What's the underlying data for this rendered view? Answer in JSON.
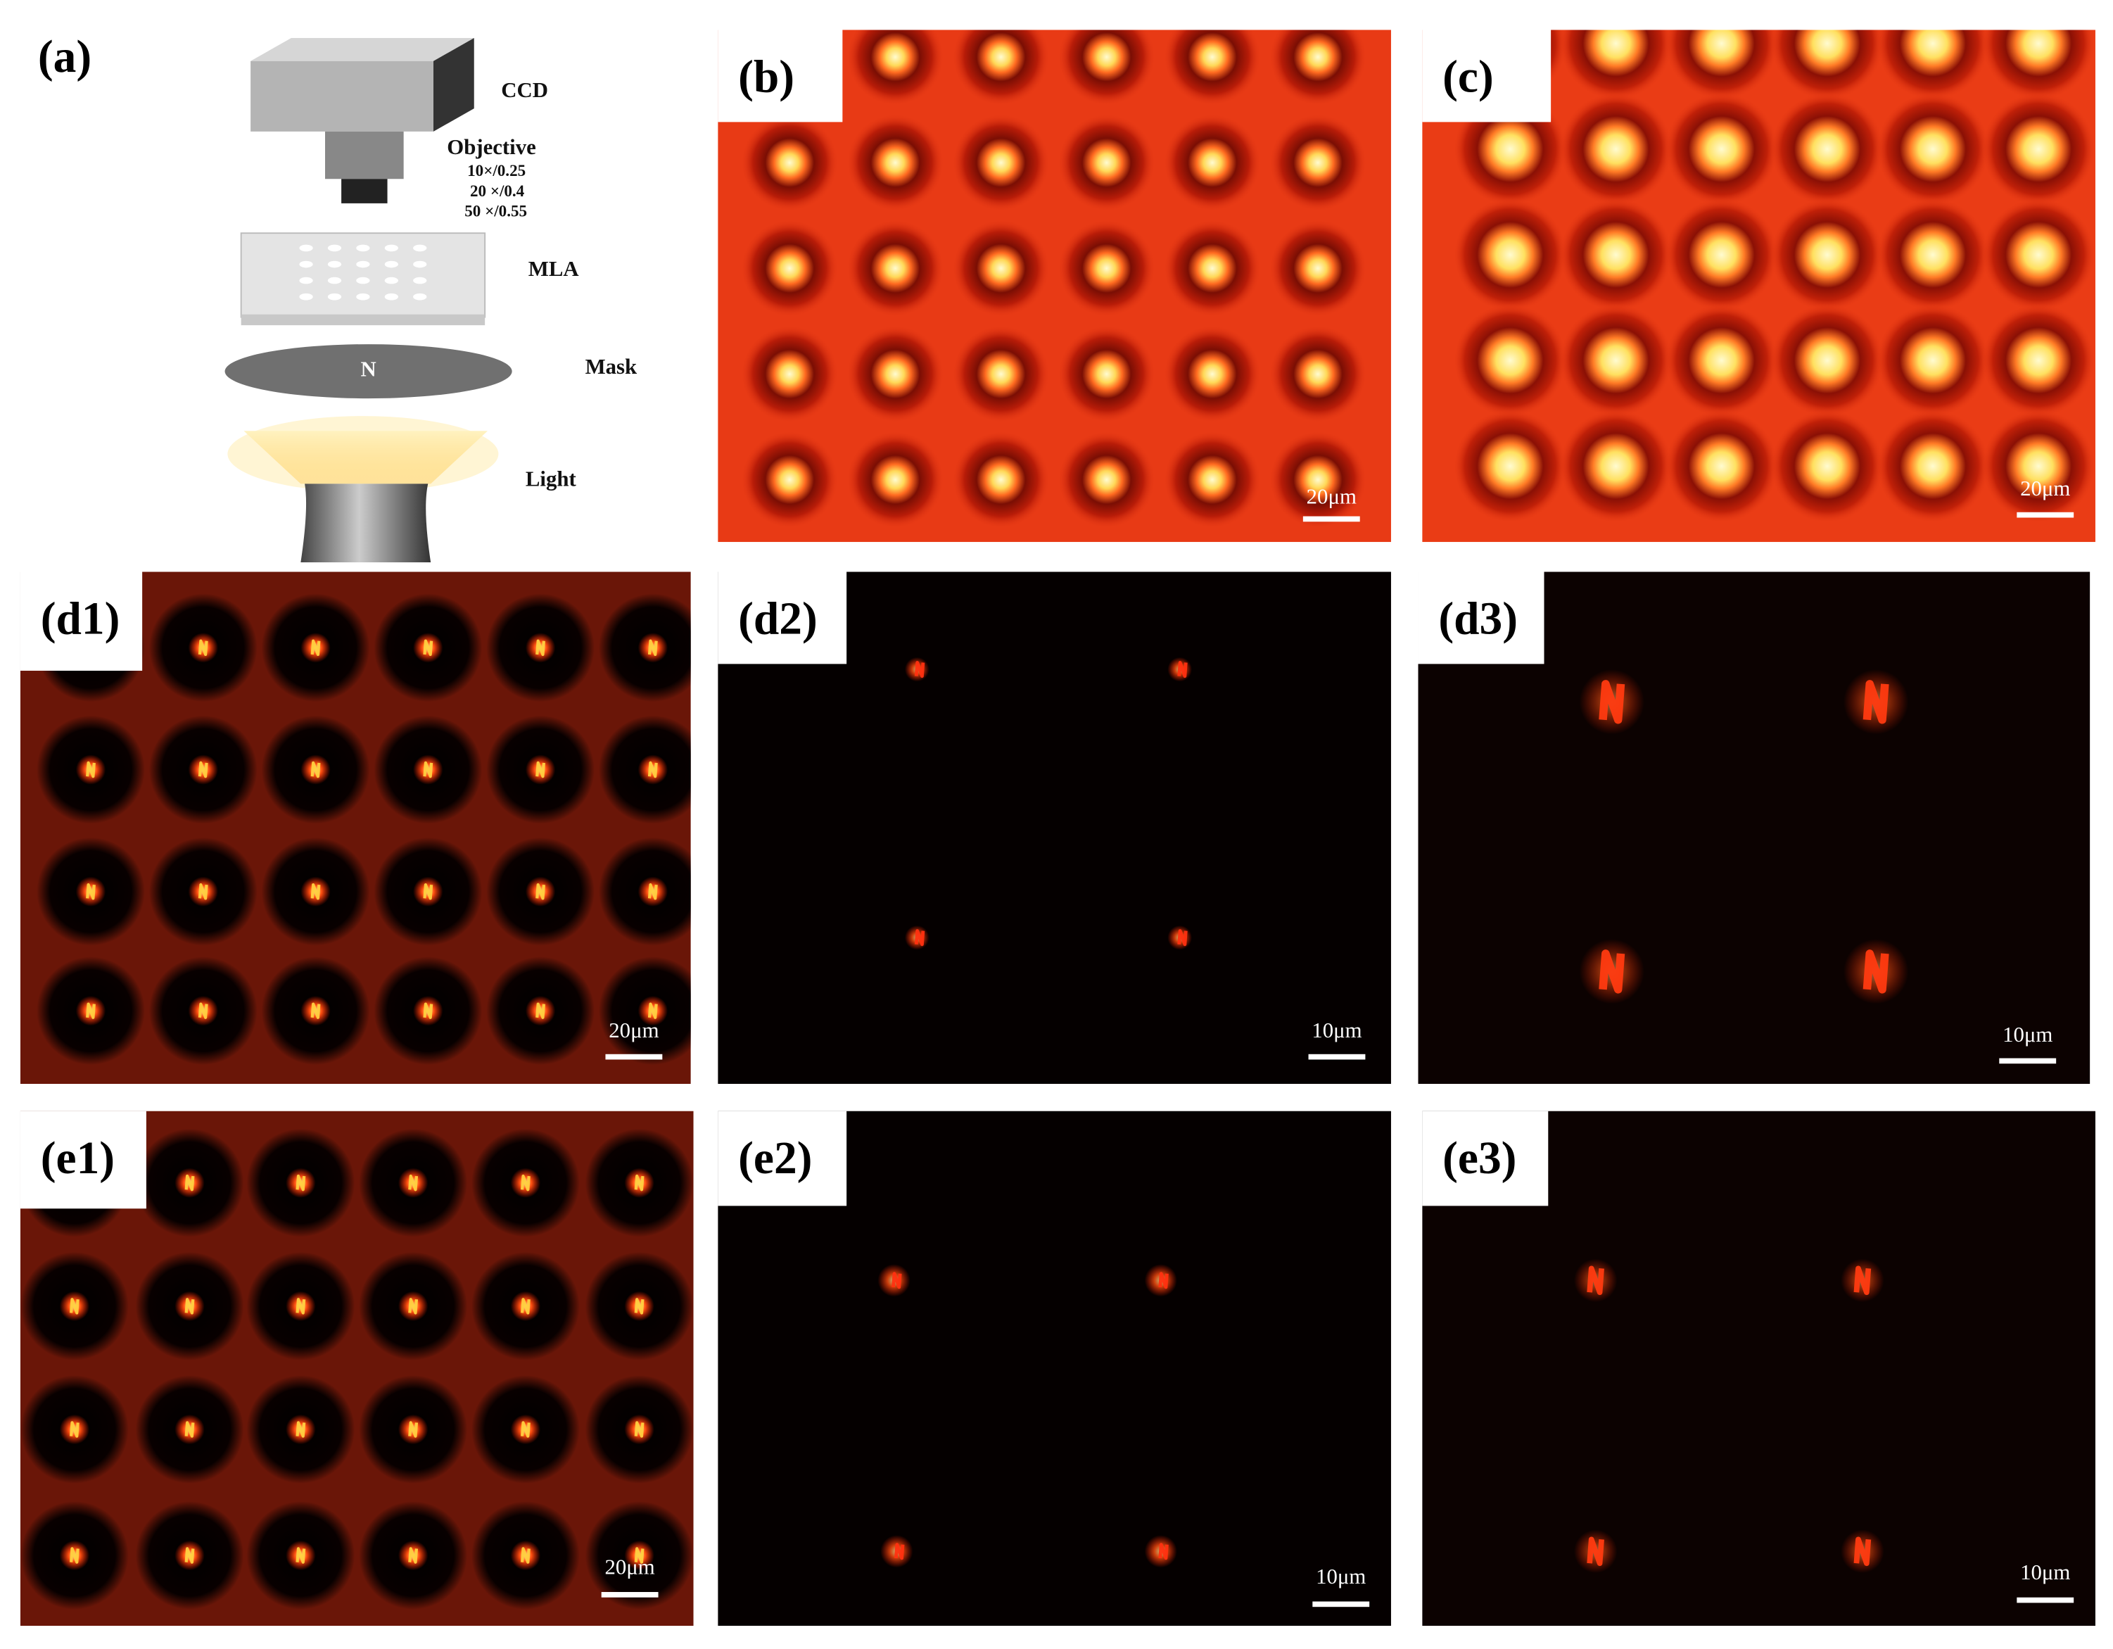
{
  "diagram": {
    "panel_label": "(a)",
    "ccd": "CCD",
    "objective": "Objective",
    "magnifications": [
      "10×/0.25",
      "20 ×/0.4",
      "50 ×/0.55"
    ],
    "mla": "MLA",
    "mask": "Mask",
    "mask_letter": "N",
    "light": "Light"
  },
  "panels": [
    {
      "label": "(b)",
      "scale_bar": "20μm"
    },
    {
      "label": "(c)",
      "scale_bar": "20μm"
    },
    {
      "label": "(d1)",
      "scale_bar": "20μm"
    },
    {
      "label": "(d2)",
      "scale_bar": "10μm"
    },
    {
      "label": "(d3)",
      "scale_bar": "10μm"
    },
    {
      "label": "(e1)",
      "scale_bar": "20μm"
    },
    {
      "label": "(e2)",
      "scale_bar": "10μm"
    },
    {
      "label": "(e3)",
      "scale_bar": "10μm"
    }
  ]
}
